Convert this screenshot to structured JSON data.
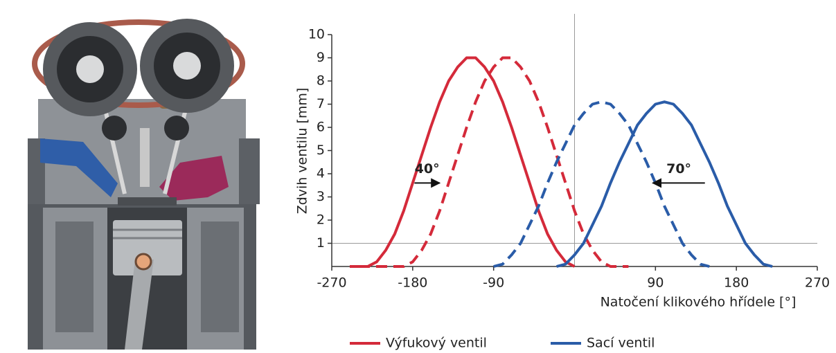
{
  "chart_data": {
    "type": "line",
    "x_label": "Natočení klikového hřídele [°]",
    "y_label": "Zdvih ventilu [mm]",
    "xlim": [
      -270,
      270
    ],
    "xticks": [
      -270,
      -180,
      -90,
      90,
      180,
      270
    ],
    "ylim": [
      0,
      10
    ],
    "yticks": [
      1,
      2,
      3,
      4,
      5,
      6,
      7,
      8,
      9,
      10
    ],
    "vline": 0,
    "hline": 1,
    "series": [
      {
        "name": "Výfukový ventil",
        "color": "#d42a3a",
        "dash": false,
        "x": [
          -250,
          -240,
          -230,
          -220,
          -210,
          -200,
          -190,
          -180,
          -170,
          -160,
          -150,
          -140,
          -130,
          -120,
          -110,
          -100,
          -90,
          -80,
          -70,
          -60,
          -50,
          -40,
          -30,
          -20,
          -10,
          0
        ],
        "values": [
          0,
          0,
          0,
          0.2,
          0.7,
          1.4,
          2.4,
          3.6,
          4.8,
          6.0,
          7.1,
          8.0,
          8.6,
          9.0,
          9.0,
          8.6,
          8.0,
          7.1,
          6.0,
          4.8,
          3.6,
          2.4,
          1.4,
          0.7,
          0.2,
          0
        ]
      },
      {
        "color": "#d42a3a",
        "dash": true,
        "x": [
          -240,
          -220,
          -190,
          -180,
          -170,
          -160,
          -150,
          -140,
          -130,
          -120,
          -110,
          -100,
          -90,
          -80,
          -70,
          -60,
          -50,
          -40,
          -30,
          -20,
          -10,
          0,
          10,
          20,
          30,
          40,
          50,
          60
        ],
        "values": [
          0,
          0,
          0,
          0.2,
          0.7,
          1.4,
          2.4,
          3.6,
          4.8,
          6.0,
          7.1,
          8.0,
          8.6,
          9.0,
          9.0,
          8.6,
          8.0,
          7.1,
          6.0,
          4.8,
          3.6,
          2.4,
          1.4,
          0.7,
          0.2,
          0,
          0,
          0
        ]
      },
      {
        "name": "Sací ventil",
        "color": "#2a5ca8",
        "dash": false,
        "x": [
          -20,
          -10,
          0,
          10,
          20,
          30,
          40,
          50,
          60,
          70,
          80,
          90,
          100,
          110,
          120,
          130,
          140,
          150,
          160,
          170,
          180,
          190,
          200,
          210,
          220
        ],
        "values": [
          0,
          0.1,
          0.5,
          1.0,
          1.8,
          2.6,
          3.6,
          4.5,
          5.3,
          6.1,
          6.6,
          7.0,
          7.1,
          7.0,
          6.6,
          6.1,
          5.3,
          4.5,
          3.6,
          2.6,
          1.8,
          1.0,
          0.5,
          0.1,
          0
        ]
      },
      {
        "color": "#2a5ca8",
        "dash": true,
        "x": [
          -90,
          -80,
          -70,
          -60,
          -50,
          -40,
          -30,
          -20,
          -10,
          0,
          10,
          20,
          30,
          40,
          50,
          60,
          70,
          80,
          90,
          100,
          110,
          120,
          130,
          140,
          150
        ],
        "values": [
          0,
          0.1,
          0.5,
          1.0,
          1.8,
          2.6,
          3.6,
          4.5,
          5.3,
          6.1,
          6.6,
          7.0,
          7.1,
          7.0,
          6.6,
          6.1,
          5.3,
          4.5,
          3.6,
          2.6,
          1.8,
          1.0,
          0.5,
          0.1,
          0
        ]
      }
    ],
    "annotations": [
      {
        "text": "40°",
        "from": -178,
        "to": -150,
        "y": 3.6
      },
      {
        "text": "70°",
        "from": 145,
        "to": 87,
        "y": 3.6
      }
    ]
  }
}
